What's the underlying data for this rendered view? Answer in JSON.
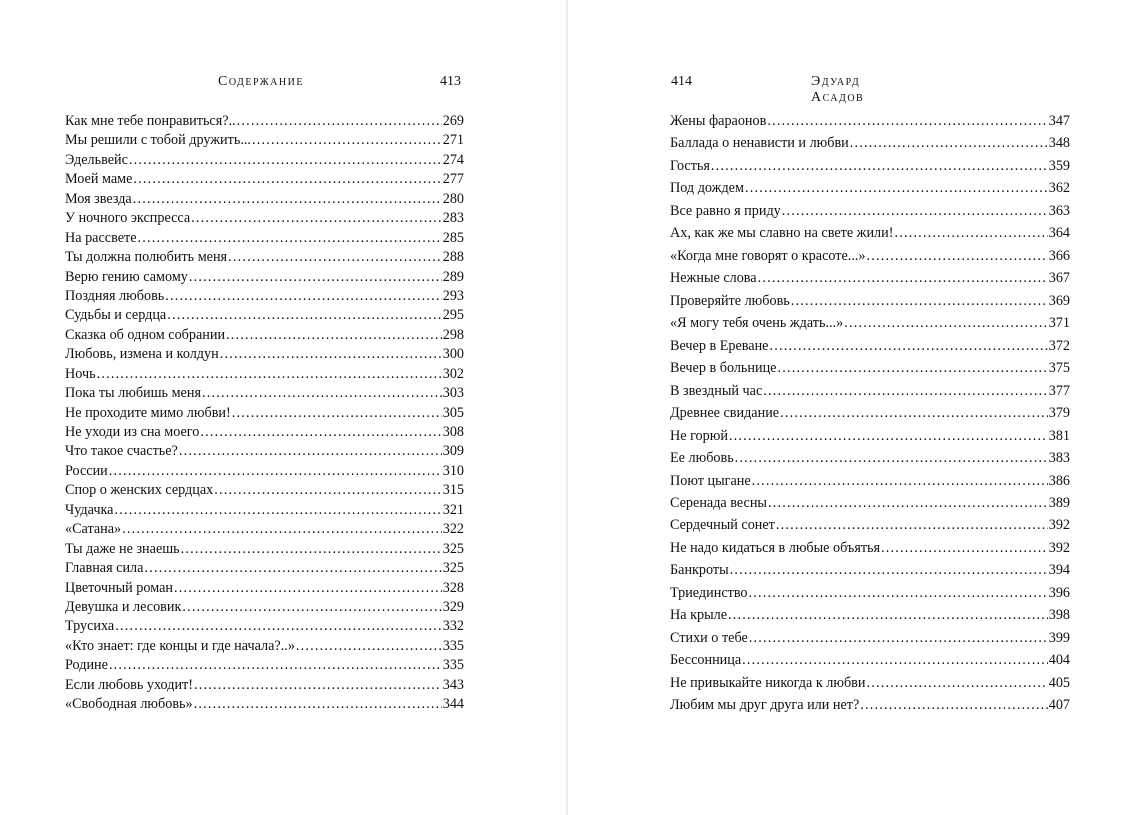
{
  "left_page": {
    "running_head": "Содержание",
    "page_number": "413",
    "entries": [
      {
        "title": "Как мне тебе понравиться?..",
        "page": "269"
      },
      {
        "title": "Мы решили с тобой дружить...",
        "page": "271"
      },
      {
        "title": "Эдельвейс",
        "page": "274"
      },
      {
        "title": "Моей маме",
        "page": "277"
      },
      {
        "title": "Моя звезда",
        "page": "280"
      },
      {
        "title": "У ночного экспресса",
        "page": "283"
      },
      {
        "title": "На рассвете",
        "page": "285"
      },
      {
        "title": "Ты должна полюбить меня",
        "page": "288"
      },
      {
        "title": "Верю гению самому",
        "page": "289"
      },
      {
        "title": "Поздняя любовь",
        "page": "293"
      },
      {
        "title": "Судьбы и сердца",
        "page": "295"
      },
      {
        "title": "Сказка об одном собрании",
        "page": "298"
      },
      {
        "title": "Любовь, измена и колдун",
        "page": "300"
      },
      {
        "title": "Ночь",
        "page": "302"
      },
      {
        "title": "Пока ты любишь меня",
        "page": "303"
      },
      {
        "title": "Не проходите мимо любви!",
        "page": "305"
      },
      {
        "title": "Не уходи из сна моего",
        "page": "308"
      },
      {
        "title": "Что такое счастье?",
        "page": "309"
      },
      {
        "title": "России",
        "page": "310"
      },
      {
        "title": "Спор о женских сердцах",
        "page": "315"
      },
      {
        "title": "Чудачка",
        "page": "321"
      },
      {
        "title": "«Сатана»",
        "page": "322"
      },
      {
        "title": "Ты даже не знаешь",
        "page": "325"
      },
      {
        "title": "Главная сила",
        "page": "325"
      },
      {
        "title": "Цветочный роман",
        "page": "328"
      },
      {
        "title": "Девушка и лесовик",
        "page": "329"
      },
      {
        "title": "Трусиха",
        "page": "332"
      },
      {
        "title": "«Кто знает: где концы и где начала?..»",
        "page": "335"
      },
      {
        "title": "Родине",
        "page": "335"
      },
      {
        "title": "Если любовь уходит!",
        "page": "343"
      },
      {
        "title": "«Свободная любовь»",
        "page": "344"
      }
    ]
  },
  "right_page": {
    "running_head": "Эдуард Асадов",
    "page_number": "414",
    "entries": [
      {
        "title": "Жены фараонов",
        "page": "347"
      },
      {
        "title": "Баллада о ненависти и любви",
        "page": "348"
      },
      {
        "title": "Гостья",
        "page": "359"
      },
      {
        "title": "Под дождем",
        "page": "362"
      },
      {
        "title": "Все равно я приду",
        "page": "363"
      },
      {
        "title": "Ах, как же мы славно на свете жили!",
        "page": "364"
      },
      {
        "title": "«Когда мне говорят о красоте...»",
        "page": "366"
      },
      {
        "title": "Нежные слова",
        "page": "367"
      },
      {
        "title": "Проверяйте любовь",
        "page": "369"
      },
      {
        "title": "«Я могу тебя очень ждать...»",
        "page": "371"
      },
      {
        "title": "Вечер в Ереване",
        "page": "372"
      },
      {
        "title": "Вечер в больнице",
        "page": "375"
      },
      {
        "title": "В звездный час",
        "page": "377"
      },
      {
        "title": "Древнее свидание",
        "page": "379"
      },
      {
        "title": "Не горюй",
        "page": "381"
      },
      {
        "title": "Ее любовь",
        "page": "383"
      },
      {
        "title": "Поют цыгане",
        "page": "386"
      },
      {
        "title": "Серенада весны",
        "page": "389"
      },
      {
        "title": "Сердечный сонет",
        "page": "392"
      },
      {
        "title": "Не надо кидаться в любые объятья",
        "page": "392"
      },
      {
        "title": "Банкроты",
        "page": "394"
      },
      {
        "title": "Триединство",
        "page": "396"
      },
      {
        "title": "На крыле",
        "page": "398"
      },
      {
        "title": "Стихи о тебе",
        "page": "399"
      },
      {
        "title": "Бессонница",
        "page": "404"
      },
      {
        "title": "Не привыкайте никогда к любви",
        "page": "405"
      },
      {
        "title": "Любим мы друг друга или нет?",
        "page": "407"
      }
    ]
  }
}
